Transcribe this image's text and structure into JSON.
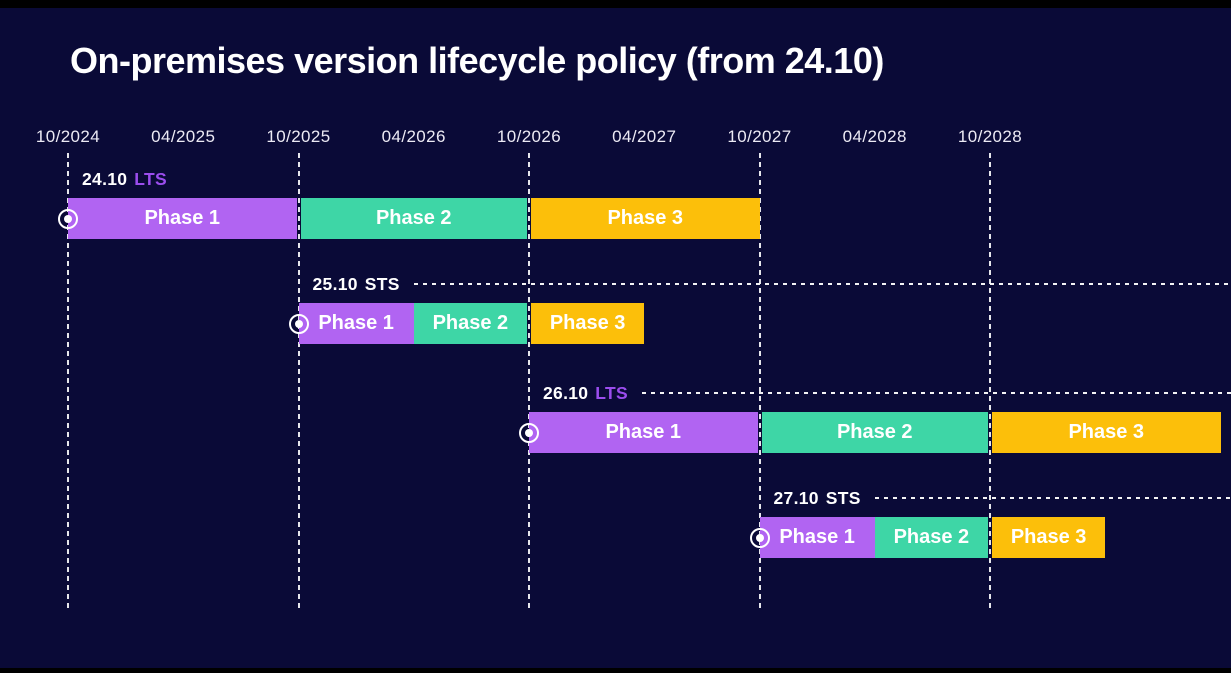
{
  "title": "On-premises version lifecycle policy (from 24.10)",
  "colors": {
    "background": "#0a0a37",
    "frame_strip": "#000000",
    "title_text": "#ffffff",
    "axis_text": "#eceaf4",
    "grid_line": "#ffffff",
    "bar_text": "#ffffff",
    "lts_channel_text": "#9b4dee",
    "sts_channel_text": "#ffffff"
  },
  "chart_data": {
    "type": "gantt-timeline",
    "title": "On-premises version lifecycle policy (from 24.10)",
    "axis": {
      "ticks": [
        "10/2024",
        "04/2025",
        "10/2025",
        "04/2026",
        "10/2026",
        "04/2027",
        "10/2027",
        "04/2028",
        "10/2028"
      ],
      "tick_interval_months": 6,
      "start": "2024-10",
      "end_visible": "2028-10",
      "october_gridlines": [
        "2024-10",
        "2025-10",
        "2026-10",
        "2027-10",
        "2028-10"
      ],
      "grid_style": "vertical dashed white lines at October ticks"
    },
    "phase_colors": [
      "#b164f2",
      "#3ed6a6",
      "#fcbf0a"
    ],
    "channel_colors": {
      "LTS": "#9b4dee",
      "STS": "#ffffff"
    },
    "legend_position": "none",
    "releases": [
      {
        "version": "24.10",
        "channel": "LTS",
        "leader_line": false,
        "phases": [
          {
            "label": "Phase 1",
            "start": "2024-10",
            "end": "2025-10"
          },
          {
            "label": "Phase 2",
            "start": "2025-10",
            "end": "2026-10"
          },
          {
            "label": "Phase 3",
            "start": "2026-10",
            "end": "2027-10"
          }
        ]
      },
      {
        "version": "25.10",
        "channel": "STS",
        "leader_line": true,
        "phases": [
          {
            "label": "Phase 1",
            "start": "2025-10",
            "end": "2026-04"
          },
          {
            "label": "Phase 2",
            "start": "2026-04",
            "end": "2026-10"
          },
          {
            "label": "Phase 3",
            "start": "2026-10",
            "end": "2027-04"
          }
        ]
      },
      {
        "version": "26.10",
        "channel": "LTS",
        "leader_line": true,
        "phases": [
          {
            "label": "Phase 1",
            "start": "2026-10",
            "end": "2027-10"
          },
          {
            "label": "Phase 2",
            "start": "2027-10",
            "end": "2028-10"
          },
          {
            "label": "Phase 3",
            "start": "2028-10",
            "end": "2029-10"
          }
        ]
      },
      {
        "version": "27.10",
        "channel": "STS",
        "leader_line": true,
        "phases": [
          {
            "label": "Phase 1",
            "start": "2027-10",
            "end": "2028-04"
          },
          {
            "label": "Phase 2",
            "start": "2028-04",
            "end": "2028-10"
          },
          {
            "label": "Phase 3",
            "start": "2028-10",
            "end": "2029-04"
          }
        ]
      }
    ]
  }
}
